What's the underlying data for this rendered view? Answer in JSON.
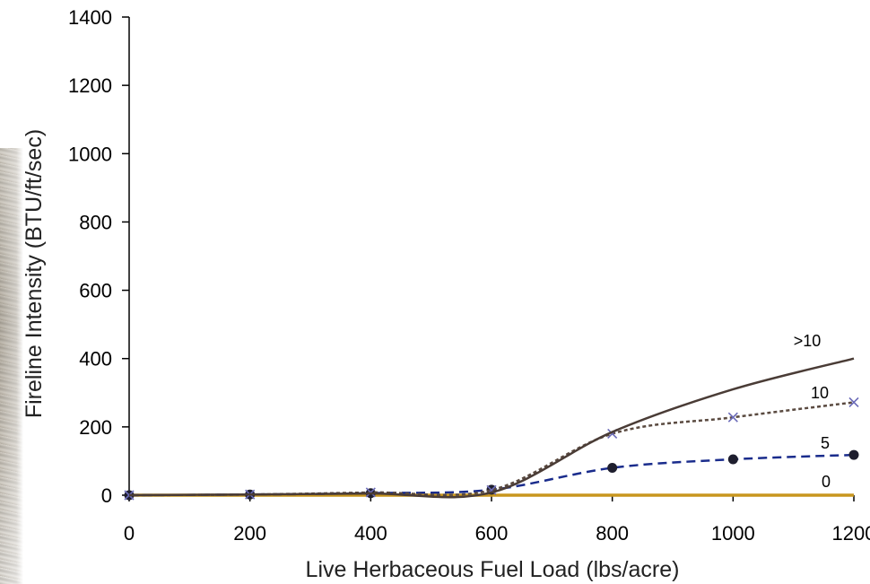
{
  "chart_data": {
    "type": "line",
    "title": "",
    "xlabel": "Live Herbaceous Fuel Load (lbs/acre)",
    "ylabel": "Fireline Intensity (BTU/ft/sec)",
    "xlim": [
      0,
      1200
    ],
    "ylim": [
      0,
      1400
    ],
    "xticks": [
      0,
      200,
      400,
      600,
      800,
      1000,
      1200
    ],
    "yticks": [
      0,
      200,
      400,
      600,
      800,
      1000,
      1200,
      1400
    ],
    "xtick_labels": [
      "0",
      "200",
      "400",
      "600",
      "800",
      "1000",
      "1200"
    ],
    "ytick_labels": [
      "0",
      "200",
      "400",
      "600",
      "800",
      "1000",
      "1200",
      "1400"
    ],
    "grid": false,
    "legend": "inline labels at line ends",
    "x": [
      0,
      200,
      400,
      600,
      800,
      1000,
      1200
    ],
    "series": [
      {
        "name": ">10",
        "values": [
          0,
          2,
          5,
          8,
          185,
          310,
          400
        ],
        "color": "#4a3c36",
        "style": "solid",
        "marker": "none"
      },
      {
        "name": "10",
        "values": [
          0,
          2,
          8,
          15,
          180,
          228,
          272
        ],
        "color": "#5a4a40",
        "style": "dotted",
        "marker": "x",
        "marker_color": "#6a6ab8"
      },
      {
        "name": "5",
        "values": [
          0,
          2,
          6,
          16,
          80,
          105,
          118
        ],
        "color": "#1a2c8c",
        "style": "dashed",
        "marker": "circle",
        "marker_color": "#1e1e2e"
      },
      {
        "name": "0",
        "values": [
          0,
          0,
          0,
          0,
          0,
          0,
          0
        ],
        "color": "#c8961e",
        "style": "solid",
        "marker": "none"
      }
    ]
  }
}
